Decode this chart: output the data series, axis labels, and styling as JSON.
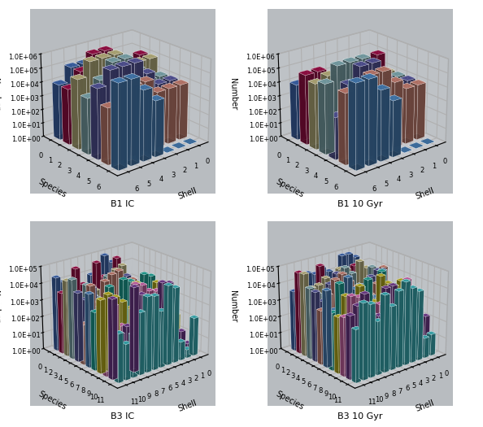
{
  "title_B1_IC": "B1 IC",
  "title_B1_10Gyr": "B1 10 Gyr",
  "title_B3_IC": "B3 IC",
  "title_B3_10Gyr": "B3 10 Gyr",
  "ylabel": "Number",
  "xlabel": "Species",
  "zlabel": "Shell",
  "yticks_B1": [
    "1.0E+00",
    "1.0E+01",
    "1.0E+02",
    "1.0E+03",
    "1.0E+04",
    "1.0E+05",
    "1.0E+06"
  ],
  "yticks_B3": [
    "1.0E+00",
    "1.0E+01",
    "1.0E+02",
    "1.0E+03",
    "1.0E+04",
    "1.0E+05"
  ],
  "n_species_B1": 7,
  "n_shells_B1": 7,
  "n_species_B3": 12,
  "n_shells_B3": 12,
  "colors_B1": [
    "#4472C4",
    "#B01050",
    "#D4CC90",
    "#90C0C8",
    "#6060B0",
    "#E09080",
    "#5090D0"
  ],
  "colors_B3": [
    "#4472C4",
    "#B01050",
    "#D4CC90",
    "#90C0C8",
    "#6060B0",
    "#E09080",
    "#5090D0",
    "#20B8AA",
    "#D4C820",
    "#E870C0",
    "#8040A0",
    "#40C8D0"
  ],
  "floor_color": "#A0A8B0",
  "wall_color_back": "#C8C8D0",
  "wall_color_side": "#D0D0D8",
  "title_fontsize": 8,
  "tick_fontsize": 6,
  "label_fontsize": 7,
  "elev": 22,
  "azim_B1": 45,
  "azim_B3": 45
}
